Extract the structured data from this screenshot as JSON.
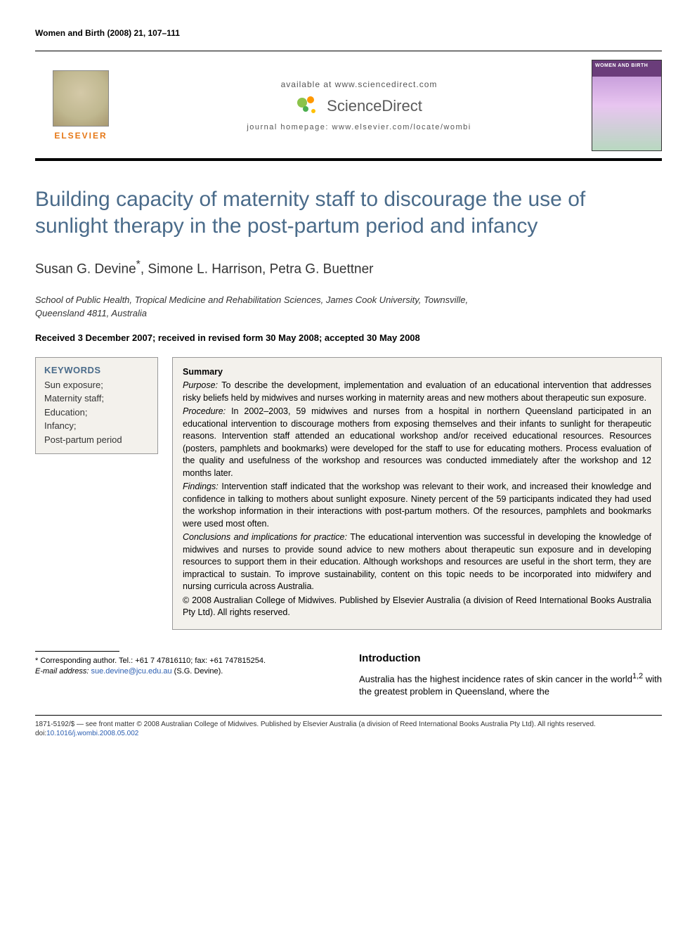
{
  "header": {
    "journal_ref": "Women and Birth (2008) 21, 107–111",
    "available_at": "available at www.sciencedirect.com",
    "brand": "ScienceDirect",
    "homepage": "journal homepage: www.elsevier.com/locate/wombi",
    "publisher": "ELSEVIER",
    "cover_title": "WOMEN AND BIRTH"
  },
  "article": {
    "title": "Building capacity of maternity staff to discourage the use of sunlight therapy in the post-partum period and infancy",
    "authors_html": "Susan G. Devine",
    "author2": ", Simone L. Harrison, Petra G. Buettner",
    "corresponding_marker": "*",
    "affiliation": "School of Public Health, Tropical Medicine and Rehabilitation Sciences, James Cook University, Townsville, Queensland 4811, Australia",
    "dates": "Received 3 December 2007; received in revised form 30 May 2008; accepted 30 May 2008"
  },
  "keywords": {
    "heading": "KEYWORDS",
    "items": "Sun exposure;\nMaternity staff;\nEducation;\nInfancy;\nPost-partum period"
  },
  "summary": {
    "heading": "Summary",
    "purpose_label": "Purpose:",
    "purpose": " To describe the development, implementation and evaluation of an educational intervention that addresses risky beliefs held by midwives and nurses working in maternity areas and new mothers about therapeutic sun exposure.",
    "procedure_label": "Procedure:",
    "procedure": " In 2002–2003, 59 midwives and nurses from a hospital in northern Queensland participated in an educational intervention to discourage mothers from exposing themselves and their infants to sunlight for therapeutic reasons. Intervention staff attended an educational workshop and/or received educational resources. Resources (posters, pamphlets and bookmarks) were developed for the staff to use for educating mothers. Process evaluation of the quality and usefulness of the workshop and resources was conducted immediately after the workshop and 12 months later.",
    "findings_label": "Findings:",
    "findings": " Intervention staff indicated that the workshop was relevant to their work, and increased their knowledge and confidence in talking to mothers about sunlight exposure. Ninety percent of the 59 participants indicated they had used the workshop information in their interactions with post-partum mothers. Of the resources, pamphlets and bookmarks were used most often.",
    "conclusions_label": "Conclusions and implications for practice:",
    "conclusions": " The educational intervention was successful in developing the knowledge of midwives and nurses to provide sound advice to new mothers about therapeutic sun exposure and in developing resources to support them in their education. Although workshops and resources are useful in the short term, they are impractical to sustain. To improve sustainability, content on this topic needs to be incorporated into midwifery and nursing curricula across Australia.",
    "copyright": "© 2008 Australian College of Midwives. Published by Elsevier Australia (a division of Reed International Books Australia Pty Ltd). All rights reserved."
  },
  "body": {
    "corresponding_note1": "* Corresponding author. Tel.: +61 7 47816110; fax: +61 747815254.",
    "corresponding_note2_label": "E-mail address:",
    "corresponding_email": "sue.devine@jcu.edu.au",
    "corresponding_note2_suffix": " (S.G. Devine).",
    "intro_heading": "Introduction",
    "intro_text": "Australia has the highest incidence rates of skin cancer in the world",
    "intro_refs": "1,2",
    "intro_text2": " with the greatest problem in Queensland, where the"
  },
  "footer": {
    "line1": "1871-5192/$ — see front matter © 2008 Australian College of Midwives. Published by Elsevier Australia (a division of Reed International Books Australia Pty Ltd). All rights reserved.",
    "doi_label": "doi:",
    "doi": "10.1016/j.wombi.2008.05.002"
  },
  "colors": {
    "title_color": "#4a6b8a",
    "publisher_color": "#e67817",
    "link_color": "#2a5db0",
    "box_bg": "#f3f1ec",
    "box_border": "#999999"
  },
  "typography": {
    "title_fontsize": 30,
    "authors_fontsize": 19,
    "body_fontsize": 13,
    "summary_fontsize": 12.5,
    "footer_fontsize": 10
  }
}
